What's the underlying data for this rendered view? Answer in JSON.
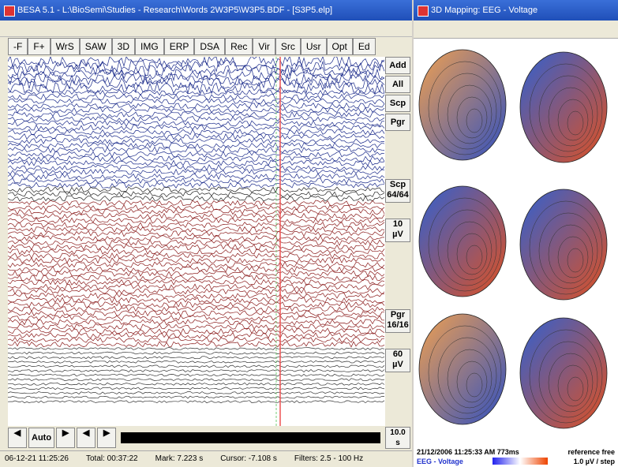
{
  "left_window": {
    "title": "BESA 5.1 - L:\\BioSemi\\Studies - Research\\Words 2W3P5\\W3P5.BDF - [S3P5.elp]",
    "toolbar": [
      "-F",
      "F+",
      "WrS",
      "SAW",
      "3D",
      "IMG",
      "ERP",
      "DSA",
      "Rec",
      "Vir",
      "Src",
      "Usr",
      "Opt",
      "Ed"
    ],
    "side_buttons": [
      "Add",
      "All",
      "Scp",
      "Pgr"
    ],
    "scale_buttons": [
      {
        "top": "Scp",
        "bottom": "64/64"
      },
      {
        "top": "10",
        "bottom": "µV"
      },
      {
        "top": "Pgr",
        "bottom": "16/16"
      },
      {
        "top": "60",
        "bottom": "µV"
      }
    ],
    "auto_button": "Auto",
    "page_length": {
      "top": "10.0",
      "bottom": "s"
    },
    "status": [
      "06-12-21 11:25:26",
      "Total: 00:37:22",
      "Mark: 7.223 s",
      "Cursor: -7.108 s",
      "Filters: 2.5 - 100 Hz"
    ]
  },
  "right_window": {
    "title": "3D Mapping: EEG - Voltage",
    "timestamp": "21/12/2006 11:25:33 AM 773ms",
    "reference": "reference free",
    "mode": "EEG - Voltage",
    "scale": "1.0 µV / step"
  }
}
